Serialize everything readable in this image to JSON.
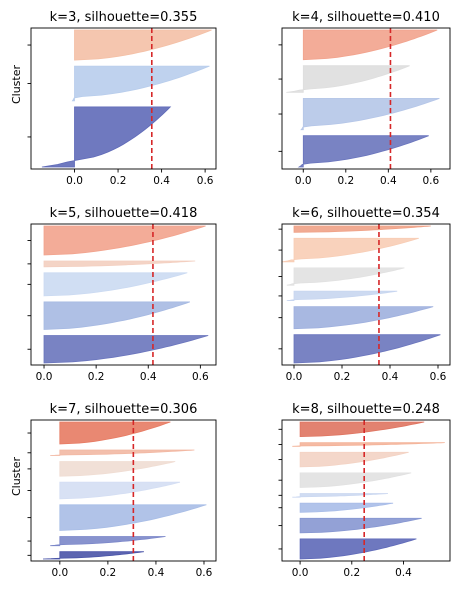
{
  "figure": {
    "colors": {
      "threshold": "#d62728",
      "axis": "#000000"
    }
  },
  "chart_data": [
    {
      "type": "silhouette",
      "title": "k=3, silhouette=0.355",
      "ylabel": "Cluster",
      "k": 3,
      "silhouette": 0.355,
      "xlim": [
        -0.2,
        0.65
      ],
      "xticks": [
        "0.0",
        "0.2",
        "0.4",
        "0.6"
      ],
      "xtick_values": [
        0,
        0.2,
        0.4,
        0.6
      ],
      "clusters": [
        {
          "size": 0.38,
          "min": -0.15,
          "max": 0.44,
          "color": "#5f6ab8"
        },
        {
          "size": 0.22,
          "min": -0.01,
          "max": 0.62,
          "color": "#b8cdec"
        },
        {
          "size": 0.19,
          "min": 0.0,
          "max": 0.63,
          "color": "#f4c0a6"
        }
      ]
    },
    {
      "type": "silhouette",
      "title": "k=4, silhouette=0.410",
      "ylabel": "",
      "k": 4,
      "silhouette": 0.41,
      "xlim": [
        -0.1,
        0.69
      ],
      "xticks": [
        "0.0",
        "0.2",
        "0.4",
        "0.6"
      ],
      "xtick_values": [
        0,
        0.2,
        0.4,
        0.6
      ],
      "clusters": [
        {
          "size": 0.2,
          "min": -0.02,
          "max": 0.59,
          "color": "#6a75bd"
        },
        {
          "size": 0.2,
          "min": -0.01,
          "max": 0.64,
          "color": "#b5c6e8"
        },
        {
          "size": 0.17,
          "min": -0.08,
          "max": 0.5,
          "color": "#dedede"
        },
        {
          "size": 0.19,
          "min": 0.0,
          "max": 0.63,
          "color": "#f2a38d"
        }
      ]
    },
    {
      "type": "silhouette",
      "title": "k=5, silhouette=0.418",
      "ylabel": "",
      "k": 5,
      "silhouette": 0.418,
      "xlim": [
        -0.05,
        0.66
      ],
      "xticks": [
        "0.0",
        "0.2",
        "0.4",
        "0.6"
      ],
      "xtick_values": [
        0,
        0.2,
        0.4,
        0.6
      ],
      "clusters": [
        {
          "size": 0.19,
          "min": 0.0,
          "max": 0.63,
          "color": "#6a75bd"
        },
        {
          "size": 0.19,
          "min": 0.0,
          "max": 0.56,
          "color": "#a6b9e2"
        },
        {
          "size": 0.16,
          "min": 0.0,
          "max": 0.55,
          "color": "#cbdaf2"
        },
        {
          "size": 0.04,
          "min": 0.0,
          "max": 0.58,
          "color": "#f3cfc0"
        },
        {
          "size": 0.2,
          "min": 0.0,
          "max": 0.62,
          "color": "#f2a38d"
        }
      ]
    },
    {
      "type": "silhouette",
      "title": "k=6, silhouette=0.354",
      "ylabel": "",
      "k": 6,
      "silhouette": 0.354,
      "xlim": [
        -0.05,
        0.65
      ],
      "xticks": [
        "0.0",
        "0.2",
        "0.4",
        "0.6"
      ],
      "xtick_values": [
        0,
        0.2,
        0.4,
        0.6
      ],
      "clusters": [
        {
          "size": 0.18,
          "min": 0.0,
          "max": 0.61,
          "color": "#6a75bd"
        },
        {
          "size": 0.14,
          "min": 0.0,
          "max": 0.58,
          "color": "#9fb0de"
        },
        {
          "size": 0.06,
          "min": -0.03,
          "max": 0.43,
          "color": "#c8d6f0"
        },
        {
          "size": 0.11,
          "min": -0.03,
          "max": 0.46,
          "color": "#e1e1e1"
        },
        {
          "size": 0.15,
          "min": -0.05,
          "max": 0.52,
          "color": "#f8cdb5"
        },
        {
          "size": 0.04,
          "min": 0.0,
          "max": 0.57,
          "color": "#f0a287"
        }
      ]
    },
    {
      "type": "silhouette",
      "title": "k=7, silhouette=0.306",
      "ylabel": "Cluster",
      "k": 7,
      "silhouette": 0.306,
      "xlim": [
        -0.12,
        0.65
      ],
      "xticks": [
        "0.0",
        "0.2",
        "0.4",
        "0.6"
      ],
      "xtick_values": [
        0,
        0.2,
        0.4,
        0.6
      ],
      "clusters": [
        {
          "size": 0.04,
          "min": -0.07,
          "max": 0.35,
          "color": "#4a54a8"
        },
        {
          "size": 0.05,
          "min": -0.04,
          "max": 0.44,
          "color": "#7b87c9"
        },
        {
          "size": 0.14,
          "min": 0.0,
          "max": 0.61,
          "color": "#a8bde6"
        },
        {
          "size": 0.09,
          "min": 0.0,
          "max": 0.5,
          "color": "#d4def3"
        },
        {
          "size": 0.08,
          "min": 0.0,
          "max": 0.48,
          "color": "#f0ddd3"
        },
        {
          "size": 0.03,
          "min": -0.04,
          "max": 0.56,
          "color": "#f2b8a3"
        },
        {
          "size": 0.12,
          "min": 0.0,
          "max": 0.46,
          "color": "#e77b63"
        }
      ]
    },
    {
      "type": "silhouette",
      "title": "k=8, silhouette=0.248",
      "ylabel": "",
      "k": 8,
      "silhouette": 0.248,
      "xlim": [
        -0.07,
        0.58
      ],
      "xticks": [
        "0.0",
        "0.2",
        "0.4"
      ],
      "xtick_values": [
        0,
        0.2,
        0.4
      ],
      "clusters": [
        {
          "size": 0.11,
          "min": 0.0,
          "max": 0.45,
          "color": "#5e69b8"
        },
        {
          "size": 0.08,
          "min": 0.0,
          "max": 0.47,
          "color": "#8797d1"
        },
        {
          "size": 0.05,
          "min": 0.0,
          "max": 0.36,
          "color": "#a9bde8"
        },
        {
          "size": 0.02,
          "min": -0.03,
          "max": 0.34,
          "color": "#cbd8f1"
        },
        {
          "size": 0.08,
          "min": 0.0,
          "max": 0.43,
          "color": "#e1e1e1"
        },
        {
          "size": 0.08,
          "min": 0.0,
          "max": 0.42,
          "color": "#f3d3c4"
        },
        {
          "size": 0.02,
          "min": -0.03,
          "max": 0.56,
          "color": "#f4b399"
        },
        {
          "size": 0.08,
          "min": 0.0,
          "max": 0.48,
          "color": "#df7460"
        }
      ]
    }
  ]
}
